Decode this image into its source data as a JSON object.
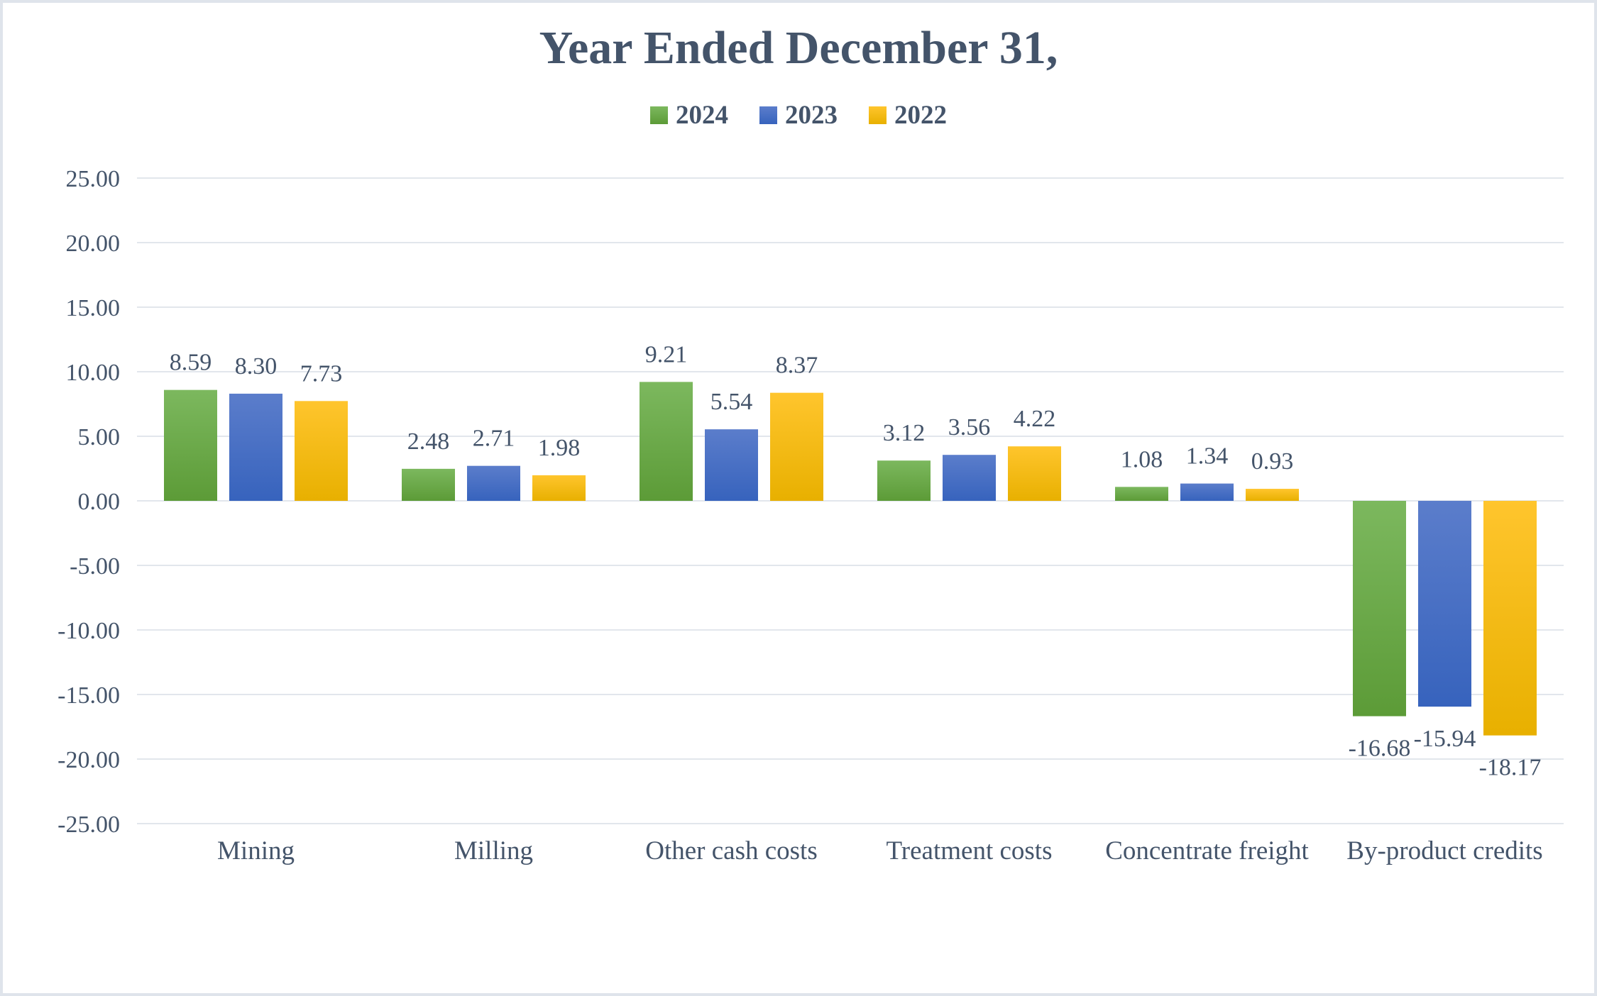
{
  "title": "Year Ended December 31,",
  "palette": {
    "text": "#44546A",
    "gridline": "#E2E6EC",
    "frame_border": "#DFE4EB",
    "background": "#FFFFFF"
  },
  "legend": {
    "position": "top-center",
    "items": [
      "2024",
      "2023",
      "2022"
    ]
  },
  "chart_data": {
    "type": "bar",
    "title": "Year Ended December 31,",
    "xlabel": "",
    "ylabel": "",
    "categories": [
      "Mining",
      "Milling",
      "Other cash costs",
      "Treatment costs",
      "Concentrate freight",
      "By-product credits"
    ],
    "series": [
      {
        "name": "2024",
        "color": "#70AD47",
        "gradient_top": "#7CB85E",
        "gradient_bottom": "#5C9B37",
        "values": [
          8.59,
          2.48,
          9.21,
          3.12,
          1.08,
          -16.68
        ]
      },
      {
        "name": "2023",
        "color": "#4472C4",
        "gradient_top": "#5B7DCB",
        "gradient_bottom": "#3763BD",
        "values": [
          8.3,
          2.71,
          5.54,
          3.56,
          1.34,
          -15.94
        ]
      },
      {
        "name": "2022",
        "color": "#FFC000",
        "gradient_top": "#FFC52D",
        "gradient_bottom": "#E8B000",
        "values": [
          7.73,
          1.98,
          8.37,
          4.22,
          0.93,
          -18.17
        ]
      }
    ],
    "ylim": [
      -25,
      25
    ],
    "ytick_step": 5,
    "ytick_labels": [
      "25.00",
      "20.00",
      "15.00",
      "10.00",
      "5.00",
      "0.00",
      "-5.00",
      "-10.00",
      "-15.00",
      "-20.00",
      "-25.00"
    ],
    "value_label_format": "0.00",
    "value_labels_visible": true,
    "grid": true,
    "legend_position": "top"
  }
}
